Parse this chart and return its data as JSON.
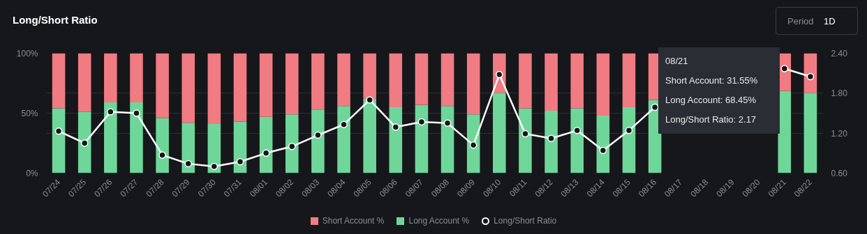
{
  "chart_data": {
    "type": "bar",
    "title": "Long/Short Ratio",
    "stacked": true,
    "categories": [
      "07/24",
      "07/25",
      "07/26",
      "07/27",
      "07/28",
      "07/29",
      "07/30",
      "07/31",
      "08/01",
      "08/02",
      "08/03",
      "08/04",
      "08/05",
      "08/06",
      "08/07",
      "08/08",
      "08/09",
      "08/10",
      "08/11",
      "08/12",
      "08/13",
      "08/14",
      "08/15",
      "08/16",
      "08/17",
      "08/18",
      "08/19",
      "08/20",
      "08/21",
      "08/22"
    ],
    "series": [
      {
        "name": "Long Account %",
        "color": "#6fd69a",
        "values": [
          54,
          51,
          59,
          59,
          46,
          42,
          41,
          43,
          47,
          49,
          53,
          56,
          62,
          55,
          57,
          56,
          49,
          67,
          54,
          52,
          54,
          48,
          55,
          61,
          null,
          null,
          null,
          null,
          68.45,
          67
        ]
      },
      {
        "name": "Short Account %",
        "color": "#f07b82",
        "values": [
          46,
          49,
          41,
          41,
          54,
          58,
          59,
          57,
          53,
          51,
          47,
          44,
          38,
          45,
          43,
          44,
          51,
          33,
          46,
          48,
          46,
          52,
          45,
          39,
          null,
          null,
          null,
          null,
          31.55,
          33
        ]
      },
      {
        "name": "Long/Short Ratio",
        "type": "line",
        "axis": "y2",
        "color": "#ffffff",
        "marker": "circle",
        "values": [
          1.23,
          1.05,
          1.52,
          1.5,
          0.87,
          0.74,
          0.7,
          0.77,
          0.9,
          1.0,
          1.17,
          1.33,
          1.7,
          1.29,
          1.37,
          1.35,
          1.02,
          2.08,
          1.19,
          1.12,
          1.24,
          0.94,
          1.24,
          1.59,
          null,
          null,
          null,
          null,
          2.17,
          2.05
        ]
      }
    ],
    "ylim": [
      0,
      100
    ],
    "yticks": [
      {
        "value": 0,
        "label": "0%"
      },
      {
        "value": 50,
        "label": "50%"
      },
      {
        "value": 100,
        "label": "100%"
      }
    ],
    "y2lim": [
      0.6,
      2.4
    ],
    "y2ticks": [
      {
        "value": 0.6,
        "label": "0.60"
      },
      {
        "value": 1.2,
        "label": "1.20"
      },
      {
        "value": 1.8,
        "label": "1.80"
      },
      {
        "value": 2.4,
        "label": "2.40"
      }
    ],
    "grid": "y",
    "legend": "bottom",
    "annotations": [
      "Period",
      "1D",
      "08/21",
      "Short Account: 31.55%",
      "Long Account: 68.45%",
      "Long/Short Ratio: 2.17"
    ]
  }
}
